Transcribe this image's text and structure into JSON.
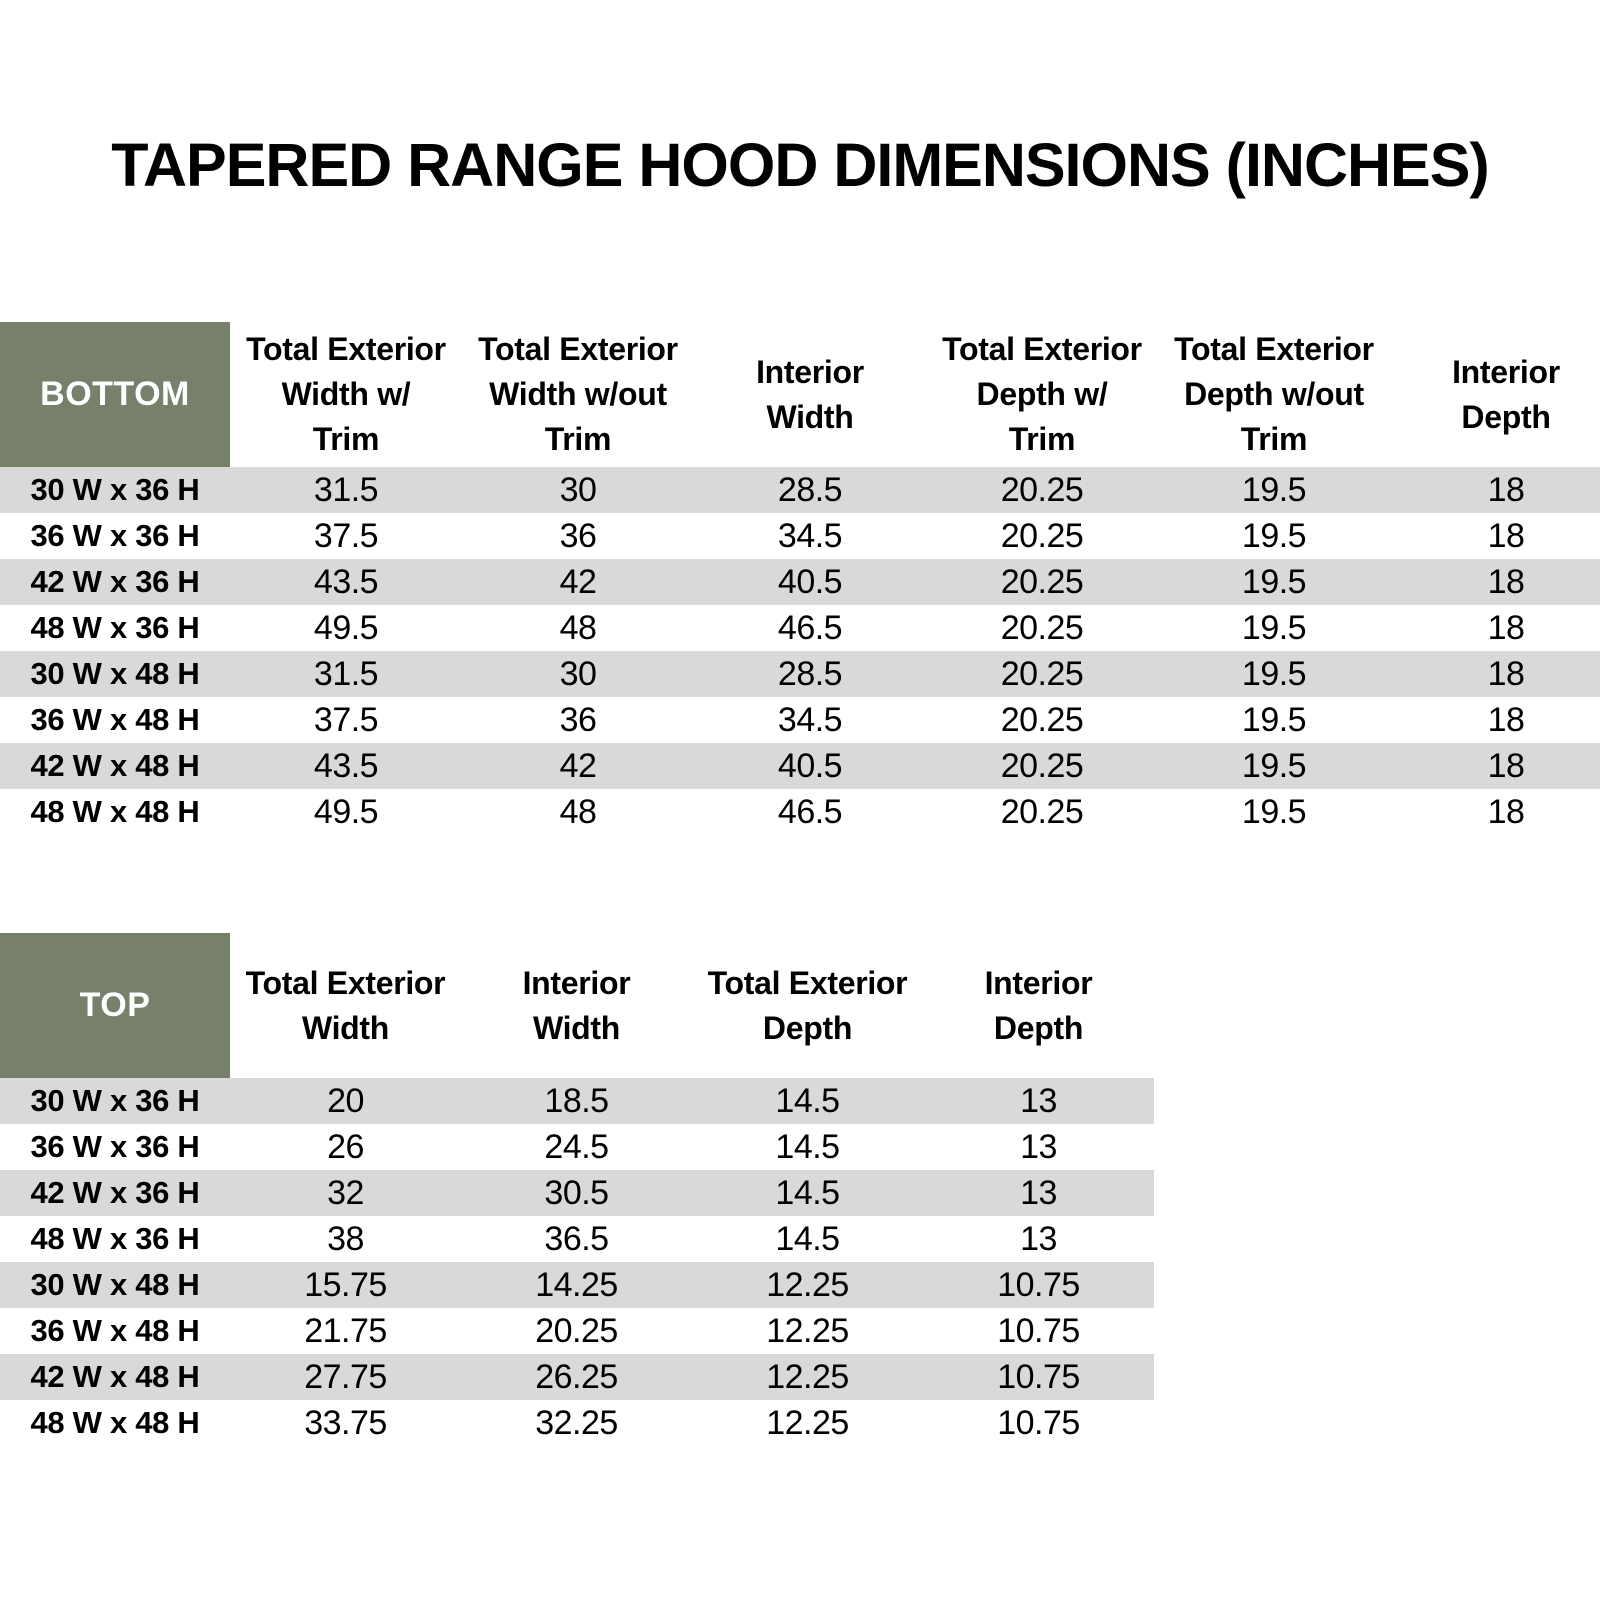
{
  "title": "TAPERED RANGE HOOD DIMENSIONS (INCHES)",
  "colors": {
    "header_green": "#77806A",
    "stripe_gray": "#D9D9D9",
    "text_color": "#000000",
    "corner_text": "#FFFFFF"
  },
  "bottom_table": {
    "corner_label": "BOTTOM",
    "columns": [
      "Total Exterior\nWidth w/\nTrim",
      "Total Exterior\nWidth w/out\nTrim",
      "Interior\nWidth",
      "Total Exterior\nDepth w/\nTrim",
      "Total Exterior\nDepth w/out\nTrim",
      "Interior\nDepth"
    ],
    "rows": [
      {
        "label": "30 W x 36 H",
        "values": [
          "31.5",
          "30",
          "28.5",
          "20.25",
          "19.5",
          "18"
        ]
      },
      {
        "label": "36 W x 36 H",
        "values": [
          "37.5",
          "36",
          "34.5",
          "20.25",
          "19.5",
          "18"
        ]
      },
      {
        "label": "42 W x 36 H",
        "values": [
          "43.5",
          "42",
          "40.5",
          "20.25",
          "19.5",
          "18"
        ]
      },
      {
        "label": "48 W x 36 H",
        "values": [
          "49.5",
          "48",
          "46.5",
          "20.25",
          "19.5",
          "18"
        ]
      },
      {
        "label": "30 W x 48 H",
        "values": [
          "31.5",
          "30",
          "28.5",
          "20.25",
          "19.5",
          "18"
        ]
      },
      {
        "label": "36 W x 48 H",
        "values": [
          "37.5",
          "36",
          "34.5",
          "20.25",
          "19.5",
          "18"
        ]
      },
      {
        "label": "42 W x 48 H",
        "values": [
          "43.5",
          "42",
          "40.5",
          "20.25",
          "19.5",
          "18"
        ]
      },
      {
        "label": "48 W x 48 H",
        "values": [
          "49.5",
          "48",
          "46.5",
          "20.25",
          "19.5",
          "18"
        ]
      }
    ]
  },
  "top_table": {
    "corner_label": "TOP",
    "columns": [
      "Total Exterior\nWidth",
      "Interior\nWidth",
      "Total Exterior\nDepth",
      "Interior\nDepth"
    ],
    "rows": [
      {
        "label": "30 W x 36 H",
        "values": [
          "20",
          "18.5",
          "14.5",
          "13"
        ]
      },
      {
        "label": "36 W x 36 H",
        "values": [
          "26",
          "24.5",
          "14.5",
          "13"
        ]
      },
      {
        "label": "42 W x 36 H",
        "values": [
          "32",
          "30.5",
          "14.5",
          "13"
        ]
      },
      {
        "label": "48 W x 36 H",
        "values": [
          "38",
          "36.5",
          "14.5",
          "13"
        ]
      },
      {
        "label": "30 W x 48 H",
        "values": [
          "15.75",
          "14.25",
          "12.25",
          "10.75"
        ]
      },
      {
        "label": "36 W x 48 H",
        "values": [
          "21.75",
          "20.25",
          "12.25",
          "10.75"
        ]
      },
      {
        "label": "42 W x 48 H",
        "values": [
          "27.75",
          "26.25",
          "12.25",
          "10.75"
        ]
      },
      {
        "label": "48 W x 48 H",
        "values": [
          "33.75",
          "32.25",
          "12.25",
          "10.75"
        ]
      }
    ]
  }
}
